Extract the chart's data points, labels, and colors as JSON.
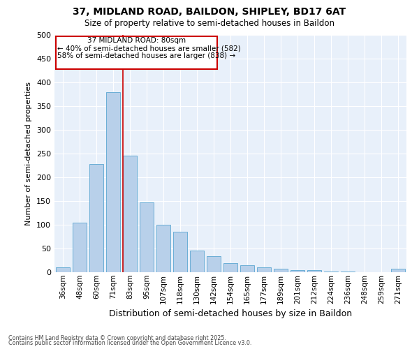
{
  "title1": "37, MIDLAND ROAD, BAILDON, SHIPLEY, BD17 6AT",
  "title2": "Size of property relative to semi-detached houses in Baildon",
  "xlabel": "Distribution of semi-detached houses by size in Baildon",
  "ylabel": "Number of semi-detached properties",
  "categories": [
    "36sqm",
    "48sqm",
    "60sqm",
    "71sqm",
    "83sqm",
    "95sqm",
    "107sqm",
    "118sqm",
    "130sqm",
    "142sqm",
    "154sqm",
    "165sqm",
    "177sqm",
    "189sqm",
    "201sqm",
    "212sqm",
    "224sqm",
    "236sqm",
    "248sqm",
    "259sqm",
    "271sqm"
  ],
  "values": [
    10,
    105,
    228,
    380,
    245,
    147,
    100,
    85,
    46,
    34,
    19,
    14,
    10,
    7,
    5,
    4,
    2,
    1,
    0,
    0,
    8
  ],
  "bar_color": "#b8d0ea",
  "bar_edge_color": "#6aaed6",
  "bg_color": "#e8f0fa",
  "grid_color": "#ffffff",
  "red_line_x": 4,
  "marker_label": "37 MIDLAND ROAD: 80sqm",
  "annotation_smaller": "← 40% of semi-detached houses are smaller (582)",
  "annotation_larger": "58% of semi-detached houses are larger (838) →",
  "box_color": "#cc0000",
  "footer1": "Contains HM Land Registry data © Crown copyright and database right 2025.",
  "footer2": "Contains public sector information licensed under the Open Government Licence v3.0.",
  "ylim": [
    0,
    500
  ],
  "yticks": [
    0,
    50,
    100,
    150,
    200,
    250,
    300,
    350,
    400,
    450,
    500
  ]
}
